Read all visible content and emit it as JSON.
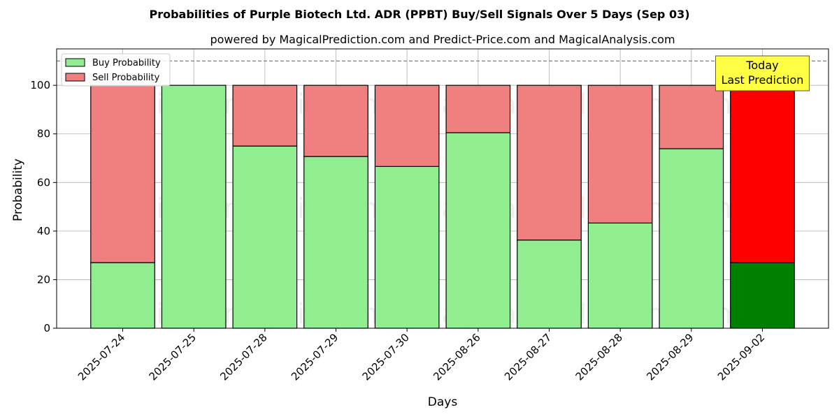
{
  "chart_data": {
    "type": "bar",
    "stacked": true,
    "title": "Probabilities of Purple Biotech Ltd. ADR (PPBT) Buy/Sell Signals Over 5 Days (Sep 03)",
    "subtitle": "powered by MagicalPrediction.com and Predict-Price.com and MagicalAnalysis.com",
    "xlabel": "Days",
    "ylabel": "Probability",
    "ylim": [
      0,
      115
    ],
    "yticks": [
      0,
      20,
      40,
      60,
      80,
      100
    ],
    "grid": true,
    "legend_position": "top-left",
    "categories": [
      "2025-07-24",
      "2025-07-25",
      "2025-07-28",
      "2025-07-29",
      "2025-07-30",
      "2025-08-26",
      "2025-08-27",
      "2025-08-28",
      "2025-08-29",
      "2025-09-02"
    ],
    "series": [
      {
        "name": "Buy Probability",
        "color": "#90ee90",
        "values": [
          27,
          100,
          75,
          70.7,
          66.6,
          80.5,
          36.3,
          43.3,
          73.9,
          27
        ]
      },
      {
        "name": "Sell Probability",
        "color": "#f08080",
        "values": [
          73,
          0,
          25,
          29.3,
          33.4,
          19.5,
          63.7,
          56.7,
          26.1,
          73
        ]
      }
    ],
    "highlight": {
      "index": 9,
      "buy_color": "#008000",
      "sell_color": "#ff0000"
    },
    "reference_line": {
      "y": 110,
      "color": "#808080",
      "style": "dashed"
    },
    "annotation": {
      "lines": [
        "Today",
        "Last Prediction"
      ],
      "category_index": 9,
      "background": "#ffff44"
    },
    "watermarks": [
      "MagicalAnalysis.com",
      "MagicalPrediction.com",
      "MagicalAnalysis.com",
      "MagicalPrediction.com",
      "MagicalAnalysis.com",
      "MagicalPrediction.com"
    ]
  }
}
